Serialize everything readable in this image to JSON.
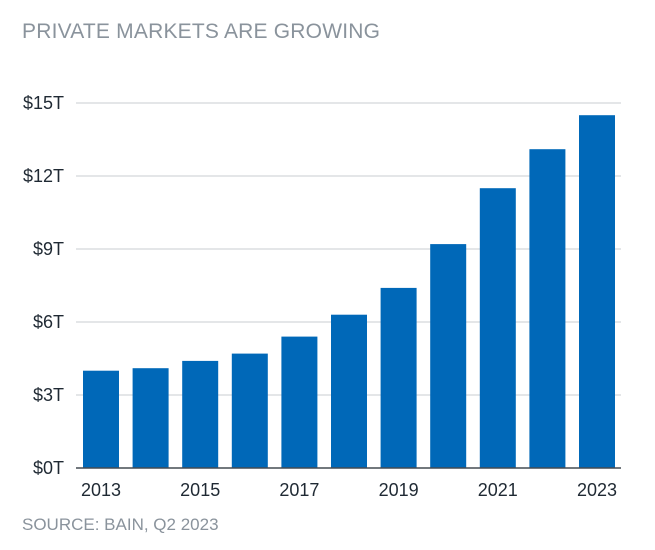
{
  "chart_data": {
    "type": "bar",
    "title": "PRIVATE MARKETS ARE GROWING",
    "source": "SOURCE: BAIN, Q2 2023",
    "categories": [
      "2013",
      "2014",
      "2015",
      "2016",
      "2017",
      "2018",
      "2019",
      "2020",
      "2021",
      "2022",
      "2023"
    ],
    "values": [
      4.0,
      4.1,
      4.4,
      4.7,
      5.4,
      6.3,
      7.4,
      9.2,
      11.5,
      13.1,
      14.5
    ],
    "x_tick_labels": [
      "2013",
      "",
      "2015",
      "",
      "2017",
      "",
      "2019",
      "",
      "2021",
      "",
      "2023"
    ],
    "y_ticks": [
      0,
      3,
      6,
      9,
      12,
      15
    ],
    "y_tick_labels": [
      "$0T",
      "$3T",
      "$6T",
      "$9T",
      "$12T",
      "$15T"
    ],
    "ylim": [
      0,
      15
    ],
    "xlabel": "",
    "ylabel": "",
    "grid": true,
    "colors": {
      "bar": "#0068b8",
      "grid": "#c8cdd2",
      "axis": "#444b52",
      "muted_text": "#8a939c",
      "tick_text": "#1f2933"
    }
  }
}
